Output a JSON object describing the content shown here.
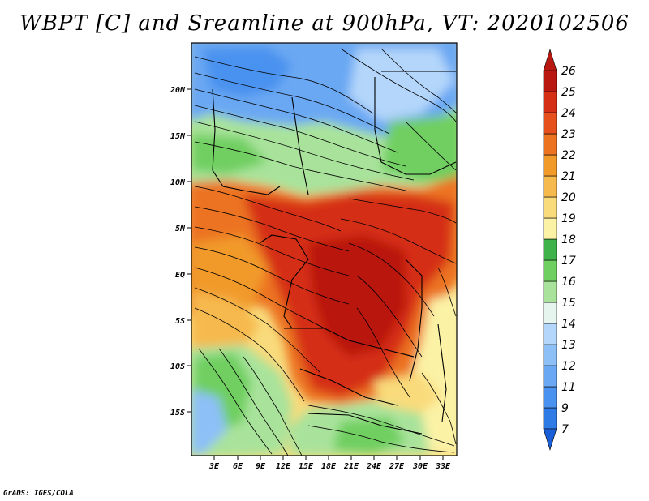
{
  "title": "WBPT [C] and Sreamline at 900hPa, VT: 2020102506",
  "credit": "GrADS: IGES/COLA",
  "lat_ticks": [
    "20N",
    "15N",
    "10N",
    "5N",
    "EQ",
    "5S",
    "10S",
    "15S"
  ],
  "lon_ticks": [
    "3E",
    "6E",
    "9E",
    "12E",
    "15E",
    "18E",
    "21E",
    "24E",
    "27E",
    "30E",
    "33E"
  ],
  "colorbar": {
    "levels": [
      "7",
      "9",
      "11",
      "12",
      "13",
      "14",
      "15",
      "16",
      "17",
      "18",
      "19",
      "20",
      "21",
      "22",
      "23",
      "24",
      "25",
      "26"
    ],
    "colors": [
      "#1a5fd8",
      "#2f7be6",
      "#4a92ef",
      "#6aa8f3",
      "#8dc0f7",
      "#b3d6fa",
      "#e6f6ee",
      "#a9e39b",
      "#6fcf60",
      "#3fb34a",
      "#fbf2a6",
      "#f9db7c",
      "#f6b94e",
      "#f19a2a",
      "#ec7320",
      "#e5501c",
      "#d52f16",
      "#b91810"
    ]
  },
  "palette": {
    "cool_blue": "#8dc0f7",
    "pale": "#e6f6ee",
    "green": "#6fcf60",
    "yellow": "#f9db7c",
    "orange": "#ec7320",
    "red": "#d52f16"
  }
}
